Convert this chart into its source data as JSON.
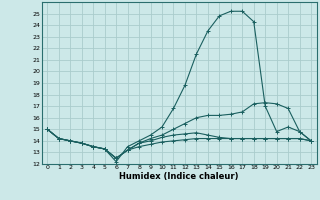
{
  "title": "",
  "xlabel": "Humidex (Indice chaleur)",
  "ylabel": "",
  "background_color": "#cce8e8",
  "grid_color": "#aacccc",
  "line_color": "#1a5f5f",
  "xlim": [
    -0.5,
    23.5
  ],
  "ylim": [
    12,
    26
  ],
  "yticks": [
    12,
    13,
    14,
    15,
    16,
    17,
    18,
    19,
    20,
    21,
    22,
    23,
    24,
    25
  ],
  "xticks": [
    0,
    1,
    2,
    3,
    4,
    5,
    6,
    7,
    8,
    9,
    10,
    11,
    12,
    13,
    14,
    15,
    16,
    17,
    18,
    19,
    20,
    21,
    22,
    23
  ],
  "curve1": [
    15.0,
    14.2,
    14.0,
    13.8,
    13.5,
    13.3,
    12.2,
    13.5,
    14.0,
    14.5,
    15.2,
    16.8,
    18.8,
    21.5,
    23.5,
    24.8,
    25.2,
    25.2,
    24.3,
    17.0,
    14.8,
    15.2,
    14.8,
    14.0
  ],
  "curve2": [
    15.0,
    14.2,
    14.0,
    13.8,
    13.5,
    13.3,
    12.5,
    13.2,
    13.8,
    14.2,
    14.5,
    15.0,
    15.5,
    16.0,
    16.2,
    16.2,
    16.3,
    16.5,
    17.2,
    17.3,
    17.2,
    16.8,
    14.8,
    14.0
  ],
  "curve3": [
    15.0,
    14.2,
    14.0,
    13.8,
    13.5,
    13.3,
    12.5,
    13.2,
    13.8,
    14.0,
    14.3,
    14.5,
    14.6,
    14.7,
    14.5,
    14.3,
    14.2,
    14.2,
    14.2,
    14.2,
    14.2,
    14.2,
    14.2,
    14.0
  ],
  "curve4": [
    15.0,
    14.2,
    14.0,
    13.8,
    13.5,
    13.3,
    12.5,
    13.2,
    13.5,
    13.7,
    13.9,
    14.0,
    14.1,
    14.2,
    14.2,
    14.2,
    14.2,
    14.2,
    14.2,
    14.2,
    14.2,
    14.2,
    14.2,
    14.0
  ]
}
